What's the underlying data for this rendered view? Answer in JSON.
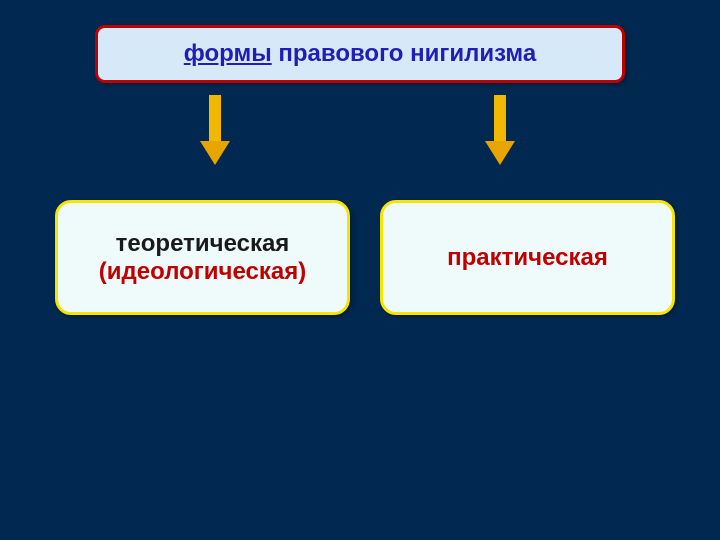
{
  "background_color": "#002850",
  "title": {
    "underlined_word": "формы",
    "rest": " правового нигилизма",
    "text_color": "#1f1fb8",
    "bg_color": "#d6e9f8",
    "border_color": "#c00000",
    "fontsize": 24
  },
  "arrows": {
    "shaft_color": "#f2b800",
    "head_color": "#e8a400"
  },
  "left_box": {
    "line1": "теоретическая",
    "line2": "(идеологическая)",
    "line1_color": "#1a1a1a",
    "line2_color": "#c00000",
    "bg_color": "#effbfb",
    "border_color": "#f6e500",
    "fontsize": 24
  },
  "right_box": {
    "line1": "практическая",
    "line1_color": "#c00000",
    "bg_color": "#effbfb",
    "border_color": "#f6e500",
    "fontsize": 24
  }
}
